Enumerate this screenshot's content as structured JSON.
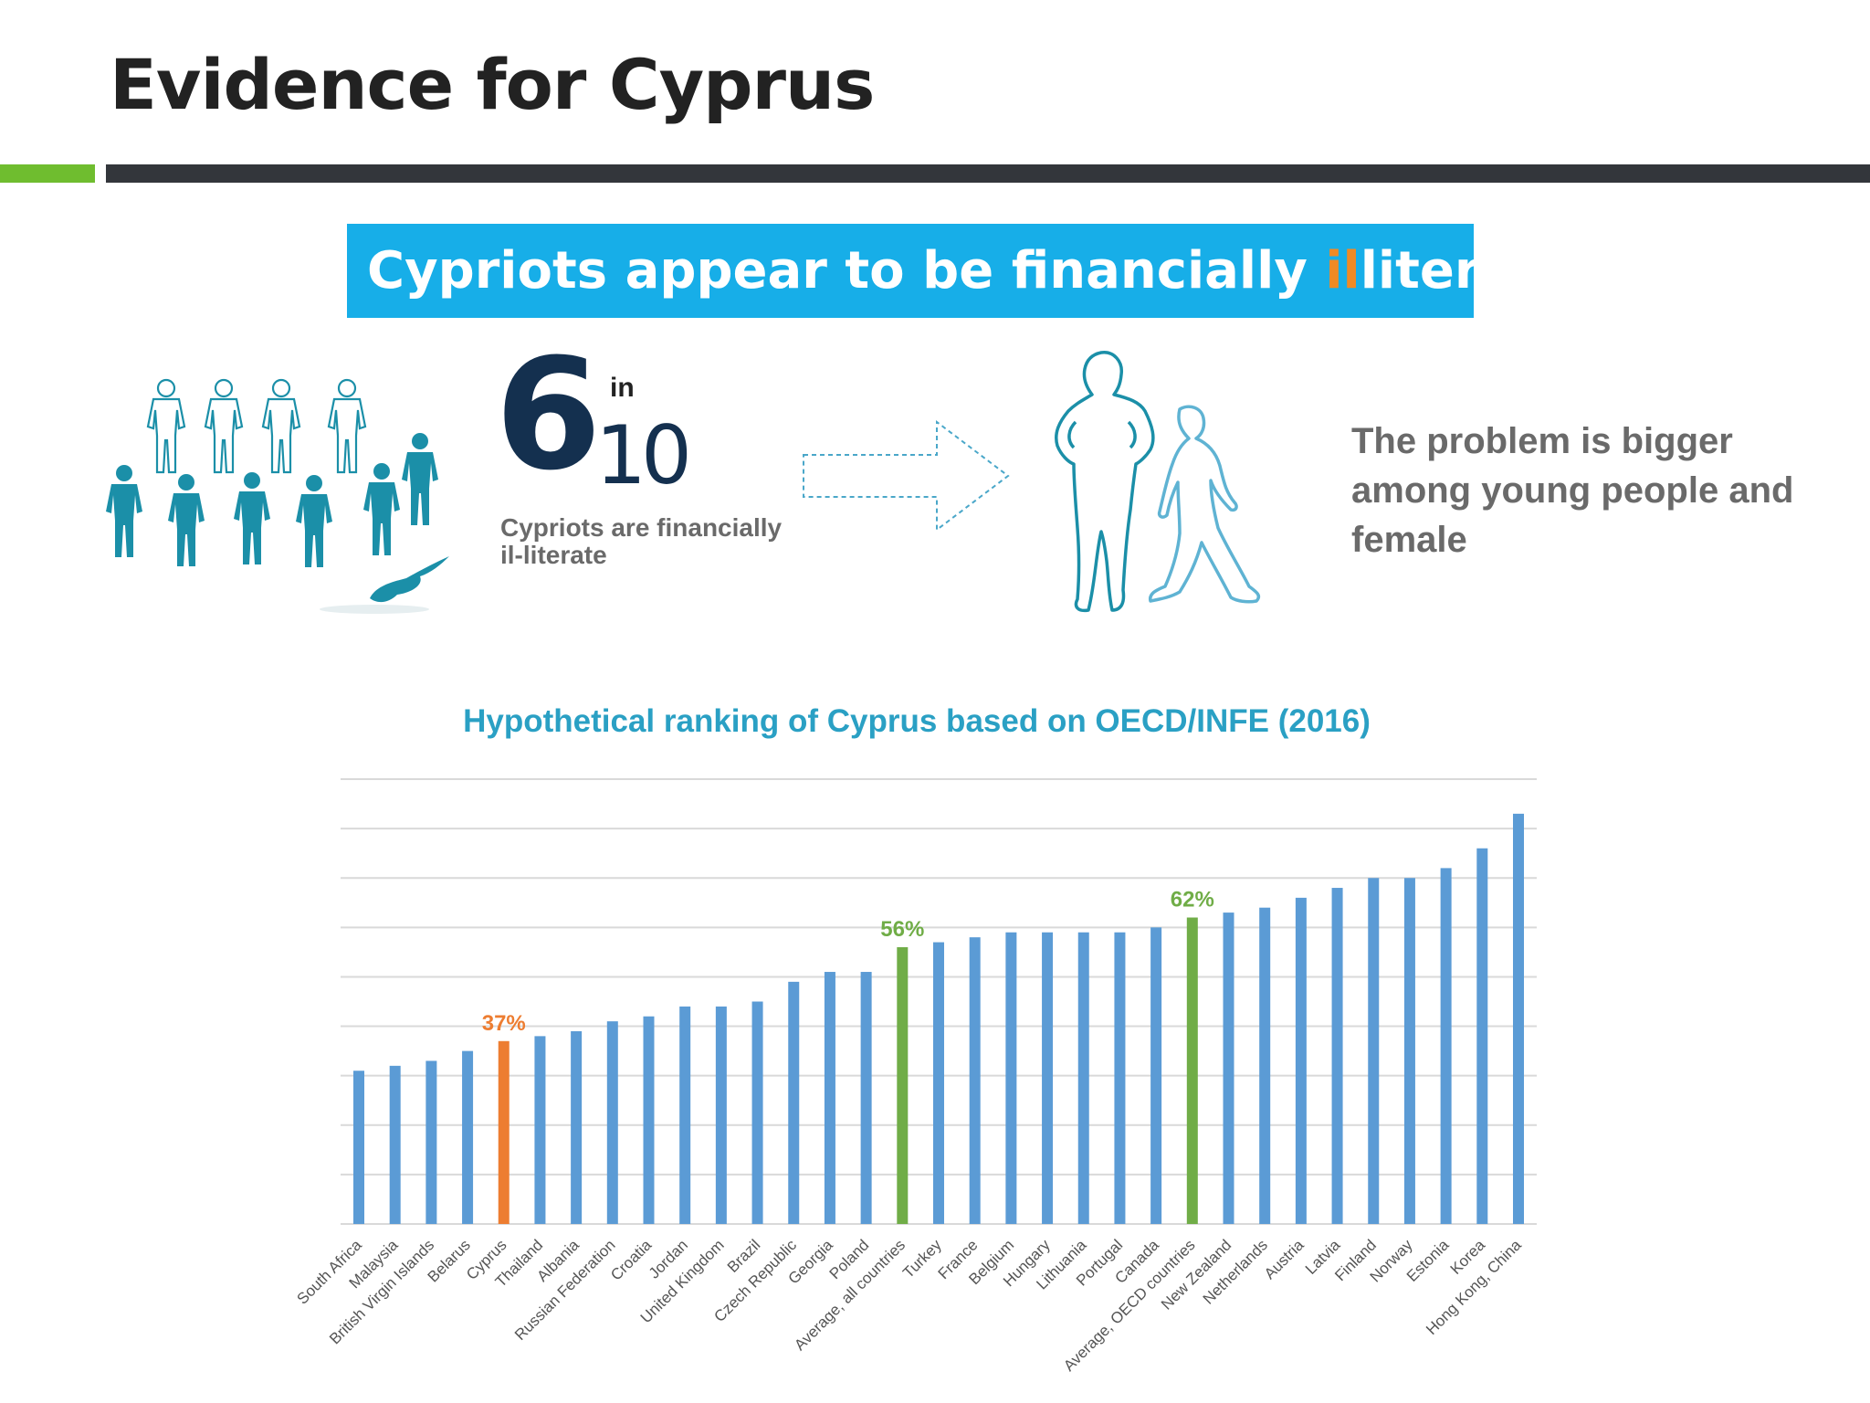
{
  "slide": {
    "title": "Evidence for Cyprus",
    "banner_prefix": "Cypriots appear to be financially ",
    "banner_highlight": "il",
    "banner_suffix": "literate"
  },
  "stat": {
    "numerator": "6",
    "connector": "in",
    "denominator": "10",
    "description": "Cypriots are financially il-literate"
  },
  "problem_text": "The problem is bigger among young people and female",
  "colors": {
    "accent_green": "#6fbd2f",
    "banner_blue": "#17aee8",
    "highlight_orange": "#f08a24",
    "bar_default": "#5b9bd5",
    "bar_cyprus": "#ed7d31",
    "bar_average": "#70ad47",
    "chart_title": "#2aa0c4",
    "people_teal": "#1b8fa8"
  },
  "icons": [
    "people-group-icon",
    "cyprus-map-icon",
    "dashed-arrow-icon",
    "woman-icon",
    "man-walking-icon"
  ],
  "chart_data": {
    "type": "bar",
    "title": "Hypothetical ranking of Cyprus based on OECD/INFE (2016)",
    "xlabel": "",
    "ylabel": "",
    "ylim": [
      0,
      90
    ],
    "gridlines": true,
    "categories": [
      "South Africa",
      "Malaysia",
      "British Virgin Islands",
      "Belarus",
      "Cyprus",
      "Thailand",
      "Albania",
      "Russian Federation",
      "Croatia",
      "Jordan",
      "United Kingdom",
      "Brazil",
      "Czech Republic",
      "Georgia",
      "Poland",
      "Average, all countries",
      "Turkey",
      "France",
      "Belgium",
      "Hungary",
      "Lithuania",
      "Portugal",
      "Canada",
      "Average, OECD countries",
      "New Zealand",
      "Netherlands",
      "Austria",
      "Latvia",
      "Finland",
      "Norway",
      "Estonia",
      "Korea",
      "Hong Kong, China"
    ],
    "values": [
      31,
      32,
      33,
      35,
      37,
      38,
      39,
      41,
      42,
      44,
      44,
      45,
      49,
      51,
      51,
      56,
      57,
      58,
      59,
      59,
      59,
      59,
      60,
      62,
      63,
      64,
      66,
      68,
      70,
      70,
      72,
      76,
      83
    ],
    "highlight": {
      "Cyprus": {
        "label": "37%",
        "color": "#ed7d31"
      },
      "Average, all countries": {
        "label": "56%",
        "color": "#70ad47"
      },
      "Average, OECD countries": {
        "label": "62%",
        "color": "#70ad47"
      }
    }
  }
}
